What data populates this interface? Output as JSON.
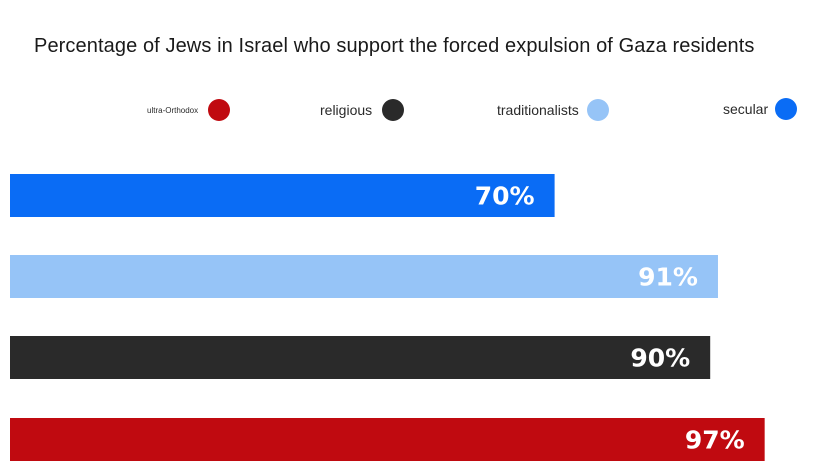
{
  "chart_data": {
    "type": "bar",
    "orientation": "horizontal",
    "title": "Percentage of Jews in Israel who support the forced expulsion of Gaza residents",
    "categories": [
      "secular",
      "traditionalists",
      "religious",
      "ultra-Orthodox"
    ],
    "values": [
      70,
      91,
      90,
      97
    ],
    "value_labels": [
      "70%",
      "91%",
      "90%",
      "97%"
    ],
    "colors": [
      "#0a6cf5",
      "#96c4f7",
      "#2a2a2a",
      "#c00a10"
    ],
    "legend": [
      {
        "label": "ultra-Orthodox",
        "color": "#c00a10"
      },
      {
        "label": "religious",
        "color": "#2a2a2a"
      },
      {
        "label": "traditionalists",
        "color": "#96c4f7"
      },
      {
        "label": "secular",
        "color": "#0a6cf5"
      }
    ],
    "legend_position": "top",
    "xlim": [
      0,
      100
    ],
    "grid": false
  }
}
